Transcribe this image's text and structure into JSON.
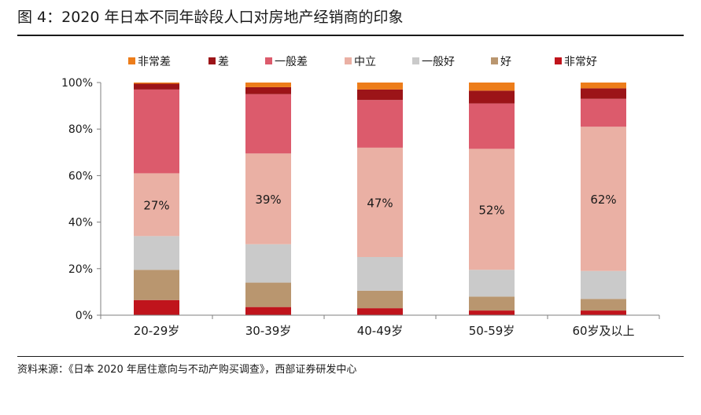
{
  "figure_title": "图 4：2020 年日本不同年龄段人口对房地产经销商的印象",
  "source_note": "资料来源：《日本 2020 年居住意向与不动产购买调查》，西部证券研发中心",
  "chart_data": {
    "type": "bar",
    "stacked": true,
    "percent_stacked": true,
    "categories": [
      "20-29岁",
      "30-39岁",
      "40-49岁",
      "50-59岁",
      "60岁及以上"
    ],
    "series": [
      {
        "name": "非常好",
        "color": "#c0141c",
        "values": [
          6.5,
          3.5,
          3.0,
          2.0,
          2.0
        ]
      },
      {
        "name": "好",
        "color": "#b9966f",
        "values": [
          13.0,
          10.5,
          7.5,
          6.0,
          5.0
        ]
      },
      {
        "name": "一般好",
        "color": "#cacaca",
        "values": [
          14.5,
          16.5,
          14.5,
          11.5,
          12.0
        ]
      },
      {
        "name": "中立",
        "color": "#eab0a4",
        "values": [
          27.0,
          39.0,
          47.0,
          52.0,
          62.0
        ]
      },
      {
        "name": "一般差",
        "color": "#dc5b6c",
        "values": [
          36.0,
          25.5,
          20.5,
          19.5,
          12.0
        ]
      },
      {
        "name": "差",
        "color": "#9c1418",
        "values": [
          2.5,
          3.0,
          4.5,
          5.5,
          4.5
        ]
      },
      {
        "name": "非常差",
        "color": "#ed7d1a",
        "values": [
          0.5,
          2.0,
          3.0,
          3.5,
          2.5
        ]
      }
    ],
    "legend_order": [
      "非常差",
      "差",
      "一般差",
      "中立",
      "一般好",
      "好",
      "非常好"
    ],
    "data_labels": [
      "27%",
      "39%",
      "47%",
      "52%",
      "62%"
    ],
    "data_label_series": "中立",
    "ylim": [
      0,
      100
    ],
    "yticks": [
      0,
      20,
      40,
      60,
      80,
      100
    ],
    "ytick_labels": [
      "0%",
      "20%",
      "40%",
      "60%",
      "80%",
      "100%"
    ],
    "grid": false,
    "legend_position": "top"
  }
}
